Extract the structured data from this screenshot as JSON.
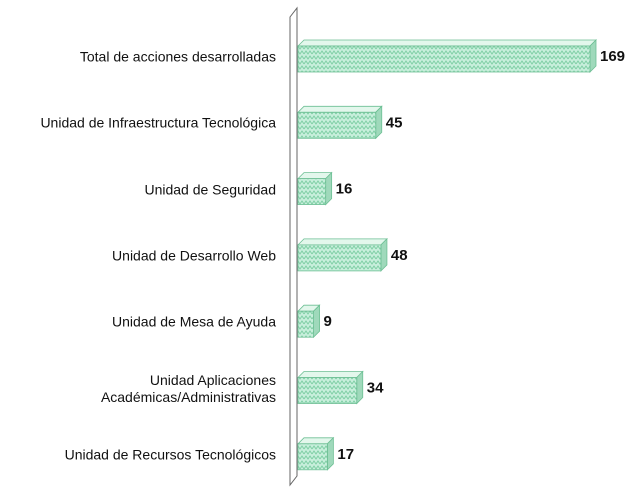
{
  "chart_data": {
    "type": "bar",
    "orientation": "horizontal",
    "categories": [
      "Total de acciones desarrolladas",
      "Unidad de Infraestructura Tecnológica",
      "Unidad de Seguridad",
      "Unidad de Desarrollo Web",
      "Unidad de Mesa de Ayuda",
      "Unidad Aplicaciones\nAcadémicas/Administrativas",
      "Unidad de Recursos Tecnológicos"
    ],
    "values": [
      169,
      45,
      16,
      48,
      9,
      34,
      17
    ],
    "color": "#c8efdc"
  }
}
